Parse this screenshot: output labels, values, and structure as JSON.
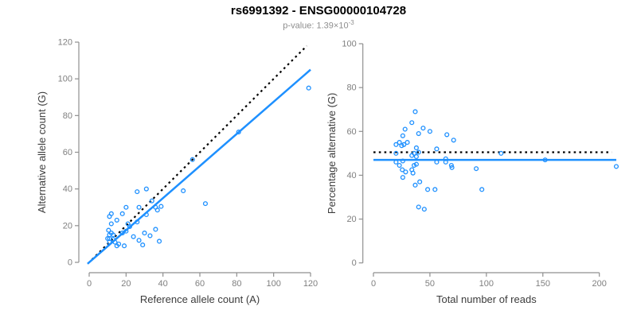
{
  "header": {
    "title": "rs6991392 - ENSG00000104728",
    "subtitle_base": "p-value: 1.39×10",
    "subtitle_exponent": "-3"
  },
  "colors": {
    "points": "#1E90FF",
    "fit_line": "#1E90FF",
    "reference_line": "#000000",
    "axis": "#8F8F8F",
    "tick_labels": "#7F7F7F",
    "axis_labels": "#3C3C3C",
    "title": "#000000",
    "subtitle": "#8E8E8E"
  },
  "chart_data": [
    {
      "type": "scatter",
      "name": "allele-counts-scatter",
      "xlabel": "Reference allele count (A)",
      "ylabel": "Alternative allele count (G)",
      "xlim": [
        0,
        120
      ],
      "ylim": [
        0,
        120
      ],
      "xticks": [
        0,
        20,
        40,
        60,
        80,
        100,
        120
      ],
      "yticks": [
        0,
        20,
        40,
        60,
        80,
        100,
        120
      ],
      "grid": false,
      "legend": "none",
      "points": [
        [
          119,
          95
        ],
        [
          81,
          71
        ],
        [
          56,
          56
        ],
        [
          51,
          39
        ],
        [
          63,
          32
        ],
        [
          31,
          40
        ],
        [
          26,
          38.5
        ],
        [
          34,
          33.5
        ],
        [
          27,
          30
        ],
        [
          36,
          30
        ],
        [
          39,
          30.5
        ],
        [
          20,
          30
        ],
        [
          37,
          28.5
        ],
        [
          12,
          26.5
        ],
        [
          18,
          26.5
        ],
        [
          31,
          26
        ],
        [
          11,
          25
        ],
        [
          15,
          23
        ],
        [
          26,
          22
        ],
        [
          21,
          21
        ],
        [
          12,
          21
        ],
        [
          22,
          19.5
        ],
        [
          36,
          18
        ],
        [
          10.5,
          17.5
        ],
        [
          20,
          17
        ],
        [
          30,
          16
        ],
        [
          18,
          16
        ],
        [
          12,
          16
        ],
        [
          11,
          15
        ],
        [
          13,
          15
        ],
        [
          33,
          14.5
        ],
        [
          24,
          14
        ],
        [
          10,
          13
        ],
        [
          11,
          13
        ],
        [
          13,
          12.5
        ],
        [
          27,
          12
        ],
        [
          38,
          11.5
        ],
        [
          11,
          11
        ],
        [
          14,
          11
        ],
        [
          16,
          10
        ],
        [
          29,
          9.5
        ],
        [
          15,
          9
        ],
        [
          19,
          9
        ]
      ],
      "lines": [
        {
          "name": "identity-line",
          "style": "dotted",
          "color": "#000000",
          "x": [
            1.5,
            118
          ],
          "y": [
            1.5,
            118
          ]
        },
        {
          "name": "fit-line",
          "style": "solid",
          "color": "#1E90FF",
          "x": [
            -0.9,
            120
          ],
          "y": [
            -0.8,
            105
          ]
        }
      ]
    },
    {
      "type": "scatter",
      "name": "percentage-vs-reads-scatter",
      "xlabel": "Total number of reads",
      "ylabel": "Percentage alternative (G)",
      "xlim": [
        0,
        200
      ],
      "ylim": [
        0,
        100
      ],
      "xticks": [
        0,
        50,
        100,
        150,
        200
      ],
      "yticks": [
        0,
        20,
        40,
        60,
        80,
        100
      ],
      "grid": false,
      "legend": "none",
      "points": [
        [
          37,
          69
        ],
        [
          34,
          64
        ],
        [
          28,
          61
        ],
        [
          44,
          61.5
        ],
        [
          50,
          60
        ],
        [
          40,
          59
        ],
        [
          65,
          58.5
        ],
        [
          26,
          58
        ],
        [
          71,
          56
        ],
        [
          23,
          55
        ],
        [
          30,
          55
        ],
        [
          20,
          54
        ],
        [
          27,
          54
        ],
        [
          25,
          53.5
        ],
        [
          38,
          52.5
        ],
        [
          56,
          52
        ],
        [
          36,
          50
        ],
        [
          20,
          50
        ],
        [
          40,
          50.5
        ],
        [
          113,
          50
        ],
        [
          34,
          49
        ],
        [
          38,
          48.5
        ],
        [
          64,
          47.5
        ],
        [
          20,
          46
        ],
        [
          26,
          46.5
        ],
        [
          56,
          46
        ],
        [
          64,
          46
        ],
        [
          152,
          47
        ],
        [
          23,
          44.5
        ],
        [
          36,
          44.5
        ],
        [
          38,
          45
        ],
        [
          69,
          44.5
        ],
        [
          25.5,
          42.5
        ],
        [
          34,
          42.5
        ],
        [
          28.5,
          41.5
        ],
        [
          35,
          41
        ],
        [
          69.5,
          43.5
        ],
        [
          91,
          43
        ],
        [
          215,
          44
        ],
        [
          26,
          39
        ],
        [
          37,
          35.5
        ],
        [
          41,
          37
        ],
        [
          48,
          33.5
        ],
        [
          54.5,
          33.5
        ],
        [
          96,
          33.5
        ],
        [
          40,
          25.5
        ],
        [
          45,
          24.5
        ]
      ],
      "lines": [
        {
          "name": "expected-50pct-line",
          "style": "dotted",
          "color": "#000000",
          "x": [
            0,
            211
          ],
          "y": [
            50.5,
            50.5
          ]
        },
        {
          "name": "fit-line",
          "style": "solid",
          "color": "#1E90FF",
          "x": [
            0,
            215
          ],
          "y": [
            47,
            47
          ]
        }
      ]
    }
  ]
}
